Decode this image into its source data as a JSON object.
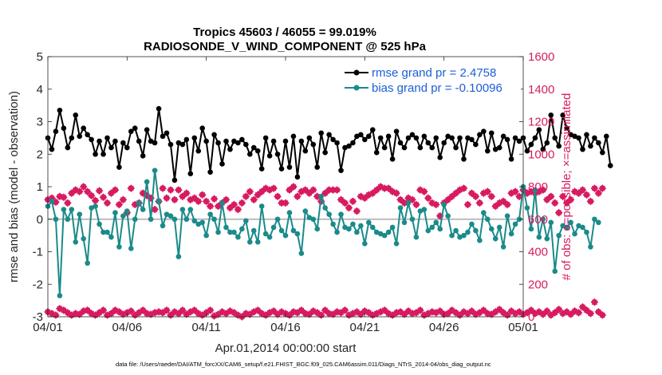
{
  "chart_data": {
    "type": "line",
    "title_line1": "Tropics 45603 / 46055 = 99.019%",
    "title_line2": "RADIOSONDE_V_WIND_COMPONENT @ 525 hPa",
    "xlabel": "Apr.01,2014 00:00:00 start",
    "ylabel_left": "rmse and bias (model - observation)",
    "ylabel_right": "# of obs: o=possible; ×=assimilated",
    "x_ticks": [
      {
        "day": 0,
        "label": "04/01"
      },
      {
        "day": 5,
        "label": "04/06"
      },
      {
        "day": 10,
        "label": "04/11"
      },
      {
        "day": 15,
        "label": "04/16"
      },
      {
        "day": 20,
        "label": "04/21"
      },
      {
        "day": 25,
        "label": "04/26"
      },
      {
        "day": 30,
        "label": "05/01"
      }
    ],
    "xlim": [
      0,
      30
    ],
    "ylim_left": [
      -3,
      5
    ],
    "yticks_left": [
      "-3",
      "-2",
      "-1",
      "0",
      "1",
      "2",
      "3",
      "4",
      "5"
    ],
    "ylim_right": [
      0,
      1600
    ],
    "yticks_right": [
      "0",
      "200",
      "400",
      "600",
      "800",
      "1000",
      "1200",
      "1400",
      "1600"
    ],
    "zero_line": 0,
    "legend": {
      "rmse": "rmse grand pr = 2.4758",
      "bias": "bias grand pr = -0.10096"
    },
    "colors": {
      "rmse": "#000000",
      "bias": "#1b8a8a",
      "obs": "#d81b60",
      "zero_line": "#bbbbbb"
    },
    "time_step_days": 0.25,
    "series": [
      {
        "name": "rmse",
        "values": [
          2.5,
          2.15,
          2.7,
          3.35,
          2.8,
          2.2,
          2.5,
          3.2,
          2.55,
          2.8,
          2.6,
          2.45,
          2.0,
          2.4,
          2.0,
          2.5,
          2.2,
          2.4,
          1.6,
          2.35,
          2.2,
          2.7,
          2.8,
          2.4,
          1.95,
          2.75,
          2.4,
          2.35,
          3.4,
          2.55,
          2.65,
          2.3,
          1.2,
          2.35,
          2.3,
          2.45,
          1.4,
          2.5,
          2.1,
          2.8,
          2.4,
          1.45,
          2.6,
          2.35,
          1.7,
          2.4,
          2.15,
          2.4,
          2.35,
          2.45,
          2.3,
          2.0,
          2.2,
          2.1,
          1.55,
          2.5,
          1.95,
          2.4,
          2.0,
          1.55,
          2.4,
          1.6,
          2.55,
          1.3,
          2.4,
          2.1,
          2.5,
          2.3,
          1.6,
          2.65,
          2.05,
          2.6,
          2.45,
          2.35,
          1.5,
          2.2,
          2.25,
          2.35,
          2.55,
          2.6,
          2.45,
          2.55,
          2.75,
          2.05,
          2.5,
          2.2,
          2.55,
          1.85,
          2.7,
          2.35,
          2.2,
          2.5,
          2.6,
          2.5,
          2.2,
          2.55,
          2.35,
          2.2,
          2.5,
          1.9,
          2.35,
          2.55,
          2.5,
          2.2,
          2.5,
          1.85,
          2.5,
          2.45,
          2.3,
          2.6,
          2.7,
          2.1,
          2.65,
          2.15,
          2.2,
          2.55,
          2.45,
          1.85,
          2.5,
          2.4,
          2.5,
          2.1,
          2.3,
          2.5,
          2.75,
          2.15,
          2.35,
          3.2,
          2.5,
          2.25,
          3.2,
          2.8,
          2.6,
          2.55,
          2.5,
          2.15,
          2.6,
          2.25,
          2.5,
          2.35,
          2.05,
          2.55,
          1.65
        ]
      },
      {
        "name": "bias",
        "values": [
          0.4,
          0.55,
          0.0,
          -2.35,
          0.3,
          0.0,
          0.3,
          -0.7,
          0.15,
          -0.6,
          -1.35,
          0.35,
          0.4,
          -0.15,
          -0.4,
          -0.4,
          -0.55,
          0.2,
          -0.85,
          0.1,
          0.25,
          -0.9,
          0.0,
          0.5,
          0.3,
          1.15,
          0.0,
          1.5,
          0.55,
          -0.2,
          0.15,
          0.1,
          0.0,
          -1.15,
          0.3,
          0.0,
          0.3,
          -0.05,
          -0.15,
          -0.1,
          -0.5,
          0.15,
          0.0,
          -0.4,
          0.5,
          -0.25,
          -0.4,
          -0.4,
          -0.55,
          -0.3,
          -0.05,
          -0.7,
          -0.35,
          -0.7,
          0.4,
          -0.45,
          -0.55,
          -0.25,
          0.0,
          -0.35,
          -0.5,
          0.2,
          -0.35,
          -0.45,
          -1.05,
          0.25,
          0.05,
          0.0,
          -0.3,
          0.7,
          0.35,
          0.15,
          -0.15,
          -0.4,
          0.15,
          -0.25,
          -0.3,
          -0.15,
          -0.4,
          -0.2,
          -0.75,
          -0.1,
          -0.25,
          -0.4,
          -0.45,
          -0.5,
          -0.4,
          -0.25,
          -0.75,
          0.35,
          -0.1,
          0.5,
          0.0,
          -0.55,
          0.25,
          0.3,
          -0.35,
          -0.25,
          -0.1,
          -0.3,
          0.45,
          0.1,
          -0.5,
          -0.35,
          -0.55,
          -0.5,
          -0.4,
          -0.15,
          -0.35,
          -0.65,
          0.2,
          0.0,
          -0.3,
          -0.6,
          -0.25,
          -0.85,
          0.1,
          -0.45,
          -0.15,
          0.0,
          1.0,
          0.35,
          -0.3,
          0.9,
          -0.55,
          0.0,
          -0.6,
          -0.1,
          -1.6,
          -0.5,
          -0.2,
          -0.25,
          -0.1,
          -0.45,
          -0.2,
          -0.25,
          -0.4,
          -0.85,
          0.0,
          -0.1
        ]
      },
      {
        "name": "obs_possible",
        "values": [
          720,
          730,
          705,
          740,
          735,
          700,
          760,
          780,
          770,
          800,
          770,
          745,
          715,
          775,
          735,
          700,
          760,
          780,
          690,
          720,
          640,
          790,
          690,
          700,
          760,
          745,
          730,
          660,
          710,
          790,
          730,
          780,
          720,
          780,
          740,
          760,
          720,
          730,
          710,
          750,
          710,
          680,
          725,
          680,
          700,
          720,
          670,
          690,
          660,
          700,
          740,
          770,
          720,
          750,
          770,
          790,
          780,
          790,
          740,
          700,
          700,
          780,
          800,
          740,
          770,
          780,
          760,
          780,
          740,
          710,
          760,
          780,
          780,
          780,
          720,
          700,
          670,
          710,
          650,
          740,
          730,
          750,
          760,
          780,
          800,
          790,
          790,
          770,
          760,
          720,
          700,
          730,
          720,
          690,
          780,
          770,
          730,
          700,
          690,
          620,
          700,
          720,
          740,
          760,
          780,
          790,
          690,
          760,
          740,
          700,
          760,
          770,
          740,
          680,
          700,
          710,
          690,
          760,
          770,
          740,
          780,
          760,
          770,
          760,
          770,
          780,
          720,
          740,
          700,
          640,
          740,
          700,
          720,
          770,
          760,
          780,
          750,
          710,
          790,
          760,
          790
        ]
      },
      {
        "name": "obs_assimilated",
        "values": [
          30,
          20,
          10,
          50,
          40,
          25,
          10,
          20,
          15,
          35,
          40,
          20,
          10,
          25,
          40,
          10,
          20,
          40,
          30,
          15,
          25,
          35,
          10,
          25,
          40,
          20,
          15,
          25,
          30,
          25,
          40,
          10,
          30,
          20,
          40,
          15,
          30,
          40,
          20,
          10,
          25,
          40,
          5,
          15,
          30,
          20,
          35,
          25,
          10,
          0,
          20,
          15,
          30,
          40,
          20,
          10,
          25,
          35,
          15,
          30,
          20,
          10,
          30,
          25,
          40,
          20,
          15,
          35,
          25,
          10,
          40,
          20,
          15,
          30,
          25,
          40,
          10,
          20,
          30,
          15,
          35,
          25,
          10,
          20,
          30,
          40,
          20,
          10,
          25,
          30,
          15,
          35,
          20,
          25,
          40,
          10,
          20,
          30,
          25,
          35,
          15,
          20,
          40,
          25,
          10,
          30,
          20,
          35,
          15,
          25,
          40,
          20,
          15,
          30,
          45,
          25,
          10,
          35,
          20,
          30,
          15,
          25,
          40,
          20,
          30,
          15,
          35,
          10,
          25,
          45,
          20,
          30,
          15,
          35,
          25,
          60,
          40,
          20,
          90,
          30,
          10
        ]
      }
    ]
  },
  "footnote": "data file: /Users/raeder/DAI/ATM_forcXX/CAM6_setup/f.e21.FHIST_BGC.f09_025.CAM6assim.011/Diags_NTrS_2014-04/obs_diag_output.nc"
}
